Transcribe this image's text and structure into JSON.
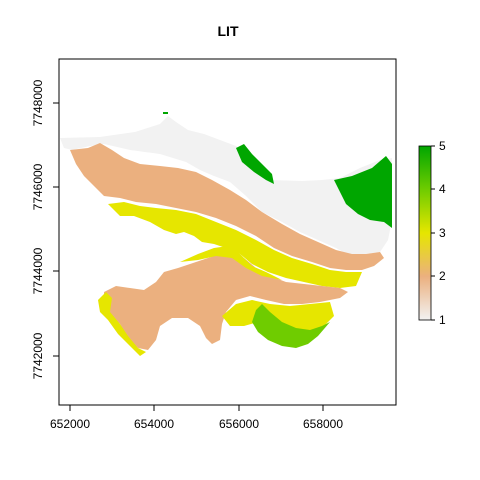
{
  "map": {
    "title": "LIT",
    "x_ticks": [
      "652000",
      "654000",
      "656000",
      "658000"
    ],
    "y_ticks": [
      "7742000",
      "7744000",
      "7746000",
      "7748000"
    ]
  },
  "legend": {
    "ticks": [
      "1",
      "2",
      "3",
      "4",
      "5"
    ],
    "colors": {
      "low": "#f2f2f2",
      "tan": "#ebb07f",
      "yellow": "#e6e600",
      "yellow_green": "#6fcc00",
      "green": "#00a600"
    }
  },
  "classes": [
    {
      "value": 1,
      "color": "#f2f2f2"
    },
    {
      "value": 2,
      "color": "#ebb07f"
    },
    {
      "value": 3,
      "color": "#e6e600"
    },
    {
      "value": 4,
      "color": "#6fcc00"
    },
    {
      "value": 5,
      "color": "#00a600"
    }
  ]
}
